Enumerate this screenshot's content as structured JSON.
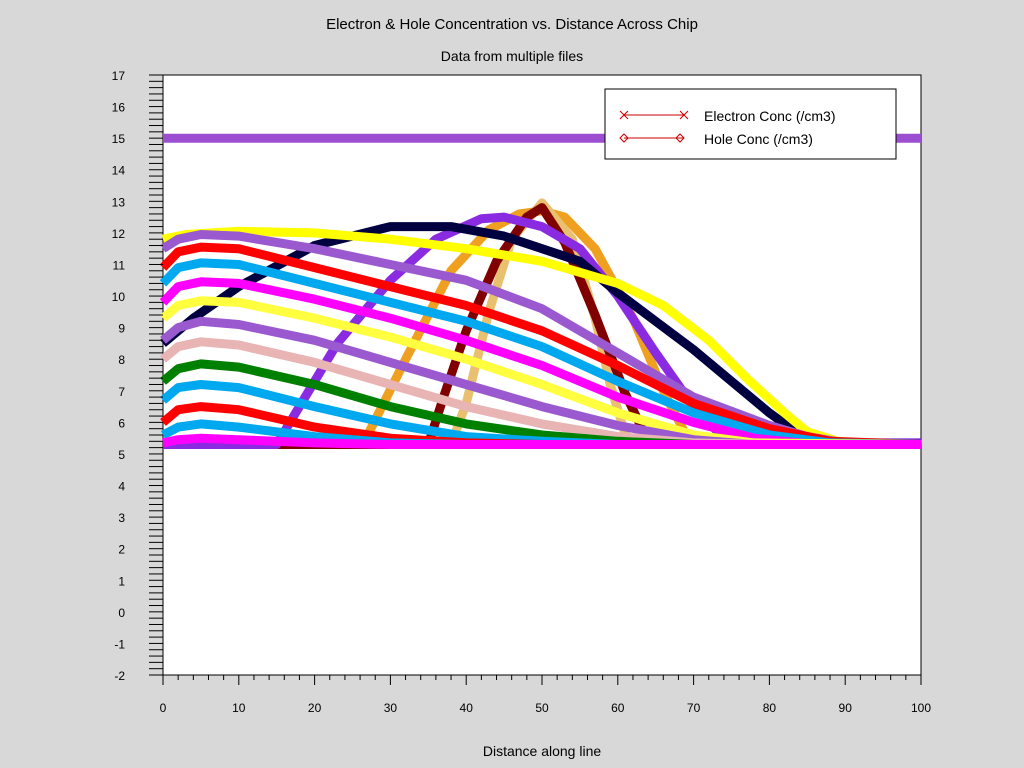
{
  "chart_data": {
    "type": "line",
    "title": "Electron & Hole Concentration vs. Distance Across Chip",
    "subtitle": "Data from multiple files",
    "xlabel": "Distance along line",
    "ylabel": "",
    "xlim": [
      0,
      100
    ],
    "ylim": [
      -2,
      17
    ],
    "x_ticks": [
      0,
      10,
      20,
      30,
      40,
      50,
      60,
      70,
      80,
      90,
      100
    ],
    "y_ticks": [
      -2,
      -1,
      0,
      1,
      2,
      3,
      4,
      5,
      6,
      7,
      8,
      9,
      10,
      11,
      12,
      13,
      14,
      15,
      16,
      17
    ],
    "grid": false,
    "legend": {
      "placement": "top-right",
      "entries": [
        {
          "name": "Electron Conc (/cm3)",
          "marker": "x",
          "color": "#cc0000"
        },
        {
          "name": "Hole Conc (/cm3)",
          "marker": "diamond",
          "color": "#cc0000"
        }
      ]
    },
    "series": [
      {
        "color": "#9b4fd0",
        "points": [
          [
            0,
            15
          ],
          [
            100,
            15
          ]
        ]
      },
      {
        "color": "#7b1fe0",
        "points": [
          [
            0,
            5.35
          ],
          [
            100,
            5.35
          ]
        ]
      },
      {
        "color": "#f0a020",
        "points": [
          [
            0,
            5.3
          ],
          [
            25,
            5.3
          ],
          [
            27,
            5.6
          ],
          [
            32,
            8
          ],
          [
            38,
            10.8
          ],
          [
            43,
            12.1
          ],
          [
            47,
            12.6
          ],
          [
            50,
            12.7
          ],
          [
            53,
            12.5
          ],
          [
            57,
            11.5
          ],
          [
            62,
            9.3
          ],
          [
            66,
            7
          ],
          [
            69,
            5.6
          ],
          [
            72,
            5.3
          ],
          [
            100,
            5.3
          ]
        ]
      },
      {
        "color": "#e8c070",
        "points": [
          [
            0,
            5.3
          ],
          [
            38,
            5.3
          ],
          [
            40,
            6.6
          ],
          [
            43,
            9.5
          ],
          [
            46,
            11.8
          ],
          [
            50,
            12.95
          ],
          [
            54,
            11.8
          ],
          [
            57,
            9.3
          ],
          [
            59,
            7.2
          ],
          [
            61,
            5.6
          ],
          [
            63,
            5.3
          ],
          [
            100,
            5.3
          ]
        ]
      },
      {
        "color": "#800000",
        "points": [
          [
            0,
            5.3
          ],
          [
            35,
            5.3
          ],
          [
            37,
            6.8
          ],
          [
            40,
            8.9
          ],
          [
            44,
            11.1
          ],
          [
            48,
            12.5
          ],
          [
            50,
            12.8
          ],
          [
            53,
            11.7
          ],
          [
            57,
            9.4
          ],
          [
            61,
            6.9
          ],
          [
            64,
            5.4
          ],
          [
            66,
            5.3
          ],
          [
            100,
            5.3
          ]
        ]
      },
      {
        "color": "#8a2be2",
        "points": [
          [
            0,
            5.3
          ],
          [
            15,
            5.3
          ],
          [
            18,
            6.5
          ],
          [
            23,
            8.5
          ],
          [
            30,
            10.5
          ],
          [
            36,
            11.8
          ],
          [
            42,
            12.45
          ],
          [
            45,
            12.5
          ],
          [
            50,
            12.2
          ],
          [
            55,
            11.5
          ],
          [
            60,
            10
          ],
          [
            65,
            8.2
          ],
          [
            70,
            6.5
          ],
          [
            74,
            5.5
          ],
          [
            77,
            5.3
          ],
          [
            100,
            5.3
          ]
        ]
      },
      {
        "color": "#000040",
        "points": [
          [
            0,
            8.5
          ],
          [
            4,
            9.3
          ],
          [
            10,
            10.3
          ],
          [
            20,
            11.6
          ],
          [
            30,
            12.2
          ],
          [
            38,
            12.2
          ],
          [
            45,
            11.9
          ],
          [
            55,
            11.1
          ],
          [
            60,
            10.1
          ],
          [
            65,
            9.2
          ],
          [
            70,
            8.3
          ],
          [
            75,
            7.3
          ],
          [
            80,
            6.3
          ],
          [
            84,
            5.6
          ],
          [
            88,
            5.35
          ],
          [
            100,
            5.3
          ]
        ]
      },
      {
        "color": "#ffff00",
        "points": [
          [
            0,
            11.8
          ],
          [
            3,
            11.95
          ],
          [
            10,
            12.05
          ],
          [
            20,
            12
          ],
          [
            30,
            11.8
          ],
          [
            40,
            11.5
          ],
          [
            50,
            11.1
          ],
          [
            60,
            10.4
          ],
          [
            66,
            9.7
          ],
          [
            72,
            8.6
          ],
          [
            77,
            7.4
          ],
          [
            82,
            6.3
          ],
          [
            85,
            5.7
          ],
          [
            89,
            5.4
          ],
          [
            95,
            5.3
          ],
          [
            100,
            5.3
          ]
        ]
      },
      {
        "color": "#9b59d0",
        "points": [
          [
            0,
            11.5
          ],
          [
            2,
            11.8
          ],
          [
            5,
            11.95
          ],
          [
            10,
            11.9
          ],
          [
            20,
            11.5
          ],
          [
            30,
            11
          ],
          [
            40,
            10.5
          ],
          [
            50,
            9.6
          ],
          [
            60,
            8.2
          ],
          [
            70,
            6.8
          ],
          [
            80,
            5.9
          ],
          [
            85,
            5.55
          ],
          [
            90,
            5.35
          ],
          [
            100,
            5.3
          ]
        ]
      },
      {
        "color": "#ff0000",
        "points": [
          [
            0,
            10.9
          ],
          [
            2,
            11.4
          ],
          [
            5,
            11.55
          ],
          [
            10,
            11.5
          ],
          [
            20,
            10.9
          ],
          [
            30,
            10.3
          ],
          [
            40,
            9.7
          ],
          [
            50,
            8.9
          ],
          [
            60,
            7.8
          ],
          [
            70,
            6.6
          ],
          [
            80,
            5.8
          ],
          [
            88,
            5.4
          ],
          [
            100,
            5.3
          ]
        ]
      },
      {
        "color": "#00a8f0",
        "points": [
          [
            0,
            10.4
          ],
          [
            2,
            10.9
          ],
          [
            5,
            11.05
          ],
          [
            10,
            11
          ],
          [
            20,
            10.4
          ],
          [
            30,
            9.8
          ],
          [
            40,
            9.2
          ],
          [
            50,
            8.4
          ],
          [
            60,
            7.3
          ],
          [
            70,
            6.3
          ],
          [
            80,
            5.6
          ],
          [
            88,
            5.35
          ],
          [
            100,
            5.3
          ]
        ]
      },
      {
        "color": "#ff00ff",
        "points": [
          [
            0,
            9.8
          ],
          [
            2,
            10.3
          ],
          [
            5,
            10.45
          ],
          [
            10,
            10.4
          ],
          [
            20,
            9.9
          ],
          [
            30,
            9.3
          ],
          [
            40,
            8.6
          ],
          [
            50,
            7.8
          ],
          [
            60,
            6.8
          ],
          [
            70,
            6
          ],
          [
            78,
            5.5
          ],
          [
            86,
            5.3
          ],
          [
            100,
            5.3
          ]
        ]
      },
      {
        "color": "#ffff40",
        "points": [
          [
            0,
            9.3
          ],
          [
            2,
            9.7
          ],
          [
            5,
            9.85
          ],
          [
            10,
            9.8
          ],
          [
            20,
            9.3
          ],
          [
            30,
            8.7
          ],
          [
            40,
            8
          ],
          [
            50,
            7.2
          ],
          [
            60,
            6.3
          ],
          [
            70,
            5.6
          ],
          [
            78,
            5.35
          ],
          [
            100,
            5.3
          ]
        ]
      },
      {
        "color": "#9b59d0",
        "points": [
          [
            0,
            8.6
          ],
          [
            2,
            9
          ],
          [
            5,
            9.2
          ],
          [
            10,
            9.1
          ],
          [
            20,
            8.6
          ],
          [
            30,
            7.9
          ],
          [
            40,
            7.2
          ],
          [
            50,
            6.5
          ],
          [
            60,
            5.9
          ],
          [
            70,
            5.45
          ],
          [
            78,
            5.3
          ],
          [
            100,
            5.3
          ]
        ]
      },
      {
        "color": "#e8b4b4",
        "points": [
          [
            0,
            8
          ],
          [
            2,
            8.4
          ],
          [
            5,
            8.55
          ],
          [
            10,
            8.45
          ],
          [
            20,
            7.9
          ],
          [
            30,
            7.2
          ],
          [
            40,
            6.5
          ],
          [
            50,
            5.95
          ],
          [
            60,
            5.55
          ],
          [
            70,
            5.35
          ],
          [
            80,
            5.3
          ],
          [
            100,
            5.3
          ]
        ]
      },
      {
        "color": "#008000",
        "points": [
          [
            0,
            7.3
          ],
          [
            2,
            7.7
          ],
          [
            5,
            7.85
          ],
          [
            10,
            7.75
          ],
          [
            20,
            7.2
          ],
          [
            30,
            6.5
          ],
          [
            40,
            5.95
          ],
          [
            50,
            5.6
          ],
          [
            60,
            5.4
          ],
          [
            70,
            5.3
          ],
          [
            100,
            5.3
          ]
        ]
      },
      {
        "color": "#00a8f0",
        "points": [
          [
            0,
            6.7
          ],
          [
            2,
            7.1
          ],
          [
            5,
            7.2
          ],
          [
            10,
            7.1
          ],
          [
            20,
            6.5
          ],
          [
            30,
            5.95
          ],
          [
            40,
            5.55
          ],
          [
            50,
            5.4
          ],
          [
            60,
            5.3
          ],
          [
            100,
            5.3
          ]
        ]
      },
      {
        "color": "#ff0000",
        "points": [
          [
            0,
            6
          ],
          [
            2,
            6.4
          ],
          [
            5,
            6.5
          ],
          [
            10,
            6.4
          ],
          [
            20,
            5.85
          ],
          [
            30,
            5.5
          ],
          [
            40,
            5.35
          ],
          [
            50,
            5.3
          ],
          [
            100,
            5.3
          ]
        ]
      },
      {
        "color": "#00a8f0",
        "points": [
          [
            0,
            5.6
          ],
          [
            2,
            5.85
          ],
          [
            5,
            5.95
          ],
          [
            10,
            5.85
          ],
          [
            20,
            5.55
          ],
          [
            30,
            5.35
          ],
          [
            40,
            5.3
          ],
          [
            100,
            5.3
          ]
        ]
      },
      {
        "color": "#ff00ff",
        "points": [
          [
            0,
            5.35
          ],
          [
            2,
            5.45
          ],
          [
            5,
            5.5
          ],
          [
            10,
            5.45
          ],
          [
            20,
            5.35
          ],
          [
            30,
            5.3
          ],
          [
            100,
            5.3
          ]
        ]
      }
    ]
  }
}
